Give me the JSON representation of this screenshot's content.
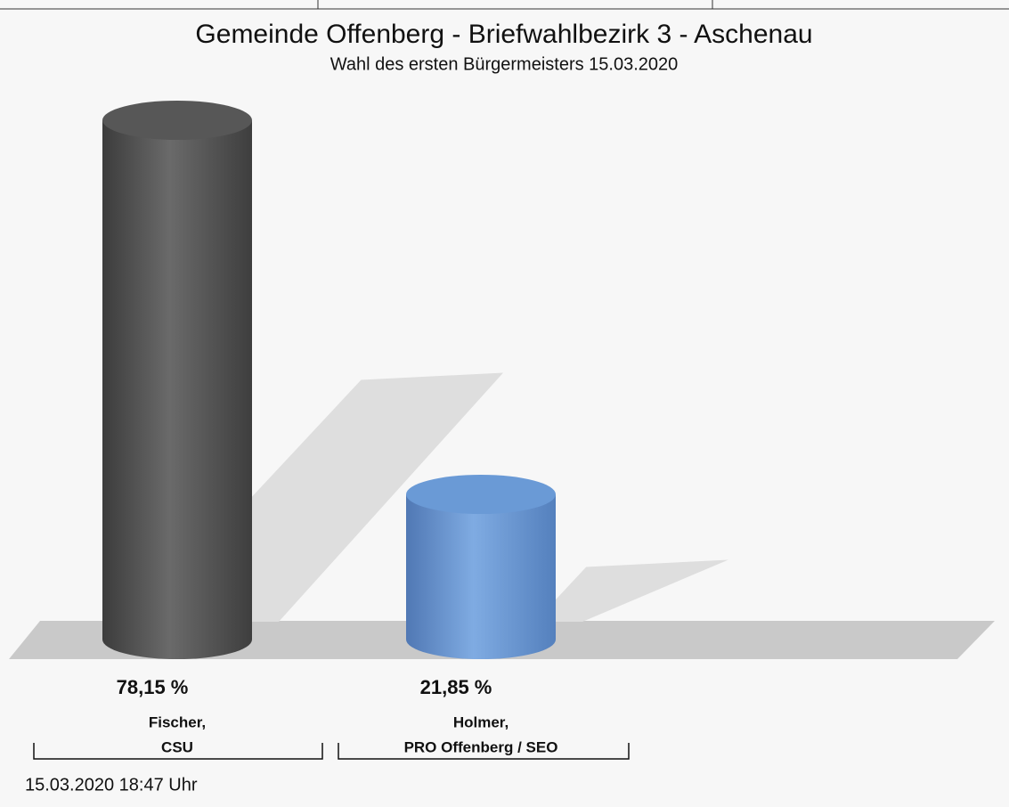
{
  "chart_data": {
    "type": "cylinder",
    "title": "Gemeinde Offenberg - Briefwahlbezirk 3 - Aschenau",
    "subtitle": "Wahl des ersten Bürgermeisters 15.03.2020",
    "categories": [
      [
        "Fischer,",
        "CSU"
      ],
      [
        "Holmer,",
        "PRO Offenberg / SEO"
      ]
    ],
    "values": [
      78.15,
      21.85
    ],
    "value_labels": [
      "78,15 %",
      "21,85 %"
    ],
    "colors": [
      "#575757",
      "#6a9ad6"
    ],
    "footnote": "15.03.2020 18:47 Uhr"
  }
}
